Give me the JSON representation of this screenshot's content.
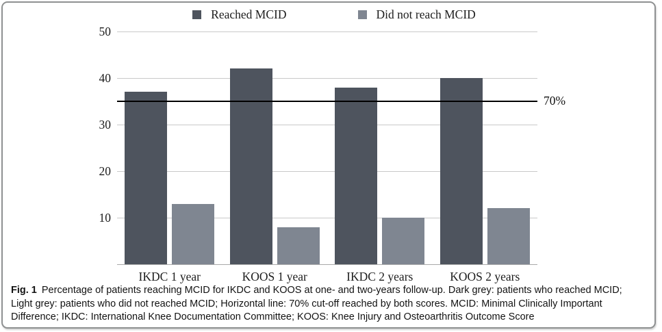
{
  "figure": {
    "caption_label": "Fig. 1",
    "caption_text": "Percentage of patients reaching MCID for IKDC and KOOS at one- and two-years follow-up. Dark grey: patients who reached MCID; Light grey: patients who did not reached MCID; Horizontal line: 70% cut-off reached by both scores. MCID: Minimal Clinically Important Difference; IKDC: International Knee Documentation Committee; KOOS: Knee Injury and Osteoarthritis Outcome Score"
  },
  "chart_data": {
    "type": "bar",
    "title": "",
    "xlabel": "",
    "ylabel": "",
    "categories": [
      "IKDC 1 year",
      "KOOS 1 year",
      "IKDC 2 years",
      "KOOS 2 years"
    ],
    "series": [
      {
        "name": "Reached MCID",
        "color": "#4e545e",
        "values": [
          37,
          42,
          38,
          40
        ]
      },
      {
        "name": "Did not reach MCID",
        "color": "#7f8691",
        "values": [
          13,
          8,
          10,
          12
        ]
      }
    ],
    "ylim": [
      0,
      50
    ],
    "yticks": [
      10,
      20,
      30,
      40,
      50
    ],
    "grid": true,
    "legend_position": "top",
    "cutoff_line": {
      "value": 35,
      "label": "70%",
      "color": "#000000"
    }
  },
  "colors": {
    "dark_bar": "#4e545e",
    "light_bar": "#7f8691",
    "gridline": "#c9c9c9",
    "baseline": "#a8a8a8",
    "border": "#8e9091",
    "cutoff": "#000000"
  }
}
